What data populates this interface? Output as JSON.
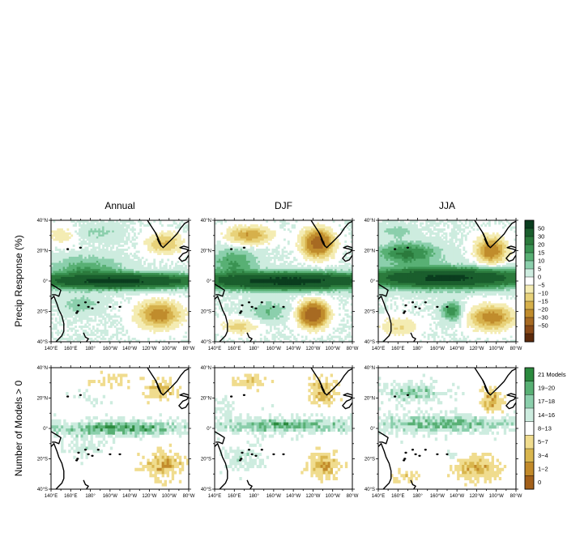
{
  "figure": {
    "columns": [
      "Annual",
      "DJF",
      "JJA"
    ],
    "rows": [
      "Precip Response (%)",
      "Number of Models > 0"
    ]
  },
  "axes": {
    "lat_labels": [
      "40°N",
      "20°N",
      "0°",
      "20°S",
      "40°S"
    ],
    "lat_values": [
      40,
      20,
      0,
      -20,
      -40
    ],
    "lon_labels": [
      "140°E",
      "160°E",
      "180°",
      "160°W",
      "140°W",
      "120°W",
      "100°W",
      "80°W"
    ],
    "lon_values": [
      140,
      160,
      180,
      200,
      220,
      240,
      260,
      280
    ]
  },
  "colorbars": {
    "precip": {
      "labels": [
        "50",
        "30",
        "20",
        "15",
        "10",
        "5",
        "0",
        "−5",
        "−10",
        "−15",
        "−20",
        "−30",
        "−50"
      ],
      "colors": [
        "#0a3d1e",
        "#1a5e2d",
        "#2b7a3c",
        "#3a9352",
        "#58b074",
        "#8bcfac",
        "#cdecdf",
        "#ffffff",
        "#f4ecb3",
        "#e8d27a",
        "#d6b04b",
        "#c08c2c",
        "#a76a22",
        "#8a4a18",
        "#5c2a0c"
      ]
    },
    "models": {
      "labels": [
        "21 Models",
        "19−20",
        "17−18",
        "14−16",
        "8−13",
        "5−7",
        "3−4",
        "1−2",
        "0"
      ],
      "colors": [
        "#2b8a3e",
        "#58b074",
        "#8bcfac",
        "#cdecdf",
        "#ffffff",
        "#f0dc8e",
        "#d9b64e",
        "#c28a2a",
        "#a3601a"
      ]
    }
  },
  "chart_data": [
    {
      "type": "heatmap",
      "title": "Annual",
      "row": "Precip Response (%)",
      "field": "precip_annual",
      "notes": "Positive band along equator (>30% centre), drying in subtropical NE and SE Pacific"
    },
    {
      "type": "heatmap",
      "title": "DJF",
      "row": "Precip Response (%)",
      "field": "precip_djf",
      "notes": "Strong equatorial increase, strong drying near 20N 120W and 20S 110W"
    },
    {
      "type": "heatmap",
      "title": "JJA",
      "row": "Precip Response (%)",
      "field": "precip_jja",
      "notes": "Equatorial increase extending north; drying off Mexico and SE Pacific"
    },
    {
      "type": "heatmap",
      "title": "Annual",
      "row": "Number of Models > 0",
      "field": "models_annual"
    },
    {
      "type": "heatmap",
      "title": "DJF",
      "row": "Number of Models > 0",
      "field": "models_djf"
    },
    {
      "type": "heatmap",
      "title": "JJA",
      "row": "Number of Models > 0",
      "field": "models_jja"
    }
  ]
}
